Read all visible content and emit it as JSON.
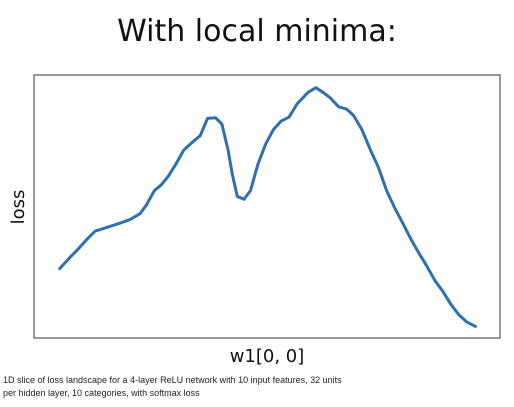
{
  "chart_data": {
    "type": "line",
    "title": "With local minima:",
    "xlabel": "w1[0, 0]",
    "ylabel": "loss",
    "grid": false,
    "x_ticks": false,
    "y_ticks": false,
    "series": [
      {
        "color": "#2e6fad",
        "points": [
          [
            0.0,
            0.2
          ],
          [
            0.029,
            0.24
          ],
          [
            0.052,
            0.27
          ],
          [
            0.073,
            0.3
          ],
          [
            0.097,
            0.33
          ],
          [
            0.122,
            0.34
          ],
          [
            0.146,
            0.35
          ],
          [
            0.17,
            0.36
          ],
          [
            0.192,
            0.37
          ],
          [
            0.219,
            0.39
          ],
          [
            0.236,
            0.42
          ],
          [
            0.258,
            0.47
          ],
          [
            0.277,
            0.49
          ],
          [
            0.296,
            0.52
          ],
          [
            0.316,
            0.56
          ],
          [
            0.338,
            0.61
          ],
          [
            0.364,
            0.64
          ],
          [
            0.383,
            0.66
          ],
          [
            0.403,
            0.72
          ],
          [
            0.425,
            0.722
          ],
          [
            0.442,
            0.7
          ],
          [
            0.459,
            0.61
          ],
          [
            0.47,
            0.53
          ],
          [
            0.484,
            0.45
          ],
          [
            0.502,
            0.44
          ],
          [
            0.52,
            0.47
          ],
          [
            0.54,
            0.56
          ],
          [
            0.561,
            0.63
          ],
          [
            0.582,
            0.68
          ],
          [
            0.603,
            0.71
          ],
          [
            0.625,
            0.724
          ],
          [
            0.647,
            0.77
          ],
          [
            0.677,
            0.81
          ],
          [
            0.698,
            0.826
          ],
          [
            0.718,
            0.81
          ],
          [
            0.738,
            0.79
          ],
          [
            0.76,
            0.76
          ],
          [
            0.782,
            0.752
          ],
          [
            0.801,
            0.73
          ],
          [
            0.824,
            0.68
          ],
          [
            0.847,
            0.61
          ],
          [
            0.869,
            0.55
          ],
          [
            0.891,
            0.47
          ],
          [
            0.913,
            0.41
          ],
          [
            0.934,
            0.36
          ],
          [
            0.958,
            0.3
          ],
          [
            0.981,
            0.25
          ],
          [
            1.0,
            0.21
          ],
          [
            1.022,
            0.16
          ],
          [
            1.045,
            0.12
          ],
          [
            1.067,
            0.075
          ],
          [
            1.088,
            0.04
          ],
          [
            1.11,
            0.015
          ],
          [
            1.133,
            0.0
          ]
        ]
      }
    ],
    "xlim": [
      -0.07,
      1.2
    ],
    "ylim": [
      -0.04,
      0.87
    ]
  },
  "caption": {
    "line1": "1D slice of loss landscape for a 4-layer ReLU network with 10 input features, 32 units",
    "line2": "per hidden layer, 10 categories, with softmax loss"
  }
}
